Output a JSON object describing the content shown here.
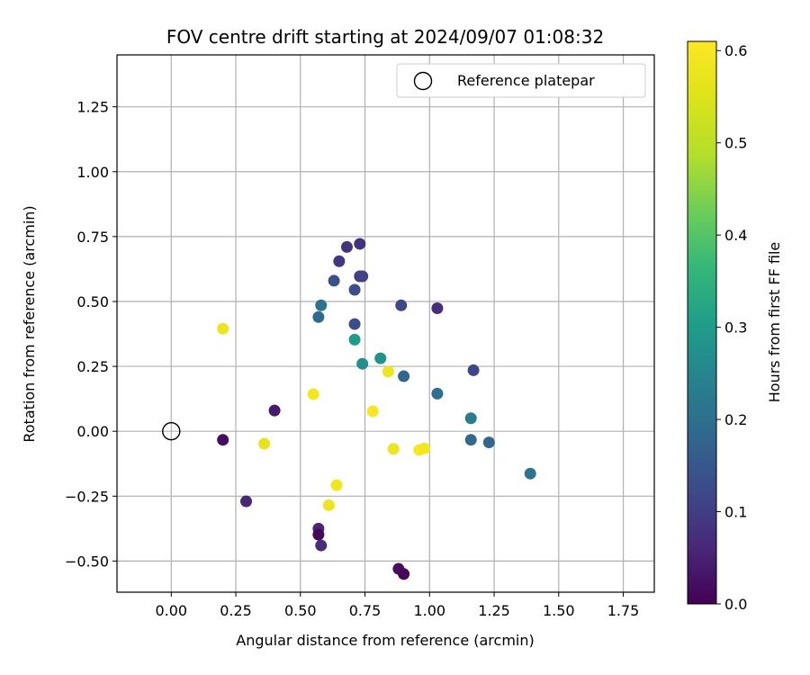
{
  "chart_data": {
    "type": "scatter",
    "title": "FOV centre drift starting at 2024/09/07 01:08:32",
    "xlabel": "Angular distance from reference (arcmin)",
    "ylabel": "Rotation from reference (arcmin)",
    "xlim": [
      -0.21,
      1.87
    ],
    "ylim": [
      -0.62,
      1.45
    ],
    "xticks": [
      {
        "value": 0.0,
        "label": "0.00"
      },
      {
        "value": 0.25,
        "label": "0.25"
      },
      {
        "value": 0.5,
        "label": "0.50"
      },
      {
        "value": 0.75,
        "label": "0.75"
      },
      {
        "value": 1.0,
        "label": "1.00"
      },
      {
        "value": 1.25,
        "label": "1.25"
      },
      {
        "value": 1.5,
        "label": "1.50"
      },
      {
        "value": 1.75,
        "label": "1.75"
      }
    ],
    "yticks": [
      {
        "value": -0.5,
        "label": "−0.50"
      },
      {
        "value": -0.25,
        "label": "−0.25"
      },
      {
        "value": 0.0,
        "label": "0.00"
      },
      {
        "value": 0.25,
        "label": "0.25"
      },
      {
        "value": 0.5,
        "label": "0.50"
      },
      {
        "value": 0.75,
        "label": "0.75"
      },
      {
        "value": 1.0,
        "label": "1.00"
      },
      {
        "value": 1.25,
        "label": "1.25"
      }
    ],
    "grid": true,
    "legend": {
      "position": "top-right",
      "entries": [
        "Reference platepar"
      ]
    },
    "reference_point": {
      "x": 0.0,
      "y": 0.0,
      "label": "Reference platepar"
    },
    "colorbar": {
      "label": "Hours from first FF file",
      "colormap": "viridis",
      "range": [
        0.0,
        0.61
      ],
      "ticks": [
        {
          "value": 0.0,
          "label": "0.0"
        },
        {
          "value": 0.1,
          "label": "0.1"
        },
        {
          "value": 0.2,
          "label": "0.2"
        },
        {
          "value": 0.3,
          "label": "0.3"
        },
        {
          "value": 0.4,
          "label": "0.4"
        },
        {
          "value": 0.5,
          "label": "0.5"
        },
        {
          "value": 0.6,
          "label": "0.6"
        }
      ]
    },
    "points": [
      {
        "x": 0.2,
        "y": 0.395,
        "c": 0.58
      },
      {
        "x": 0.2,
        "y": -0.033,
        "c": 0.02
      },
      {
        "x": 0.29,
        "y": -0.27,
        "c": 0.06
      },
      {
        "x": 0.36,
        "y": -0.048,
        "c": 0.57
      },
      {
        "x": 0.4,
        "y": 0.08,
        "c": 0.04
      },
      {
        "x": 0.55,
        "y": 0.143,
        "c": 0.59
      },
      {
        "x": 0.57,
        "y": -0.375,
        "c": 0.06
      },
      {
        "x": 0.57,
        "y": -0.398,
        "c": 0.01
      },
      {
        "x": 0.57,
        "y": 0.44,
        "c": 0.19
      },
      {
        "x": 0.58,
        "y": 0.485,
        "c": 0.21
      },
      {
        "x": 0.58,
        "y": -0.44,
        "c": 0.07
      },
      {
        "x": 0.61,
        "y": -0.285,
        "c": 0.58
      },
      {
        "x": 0.63,
        "y": 0.58,
        "c": 0.14
      },
      {
        "x": 0.64,
        "y": -0.208,
        "c": 0.59
      },
      {
        "x": 0.65,
        "y": 0.655,
        "c": 0.09
      },
      {
        "x": 0.68,
        "y": 0.71,
        "c": 0.08
      },
      {
        "x": 0.71,
        "y": 0.545,
        "c": 0.13
      },
      {
        "x": 0.71,
        "y": 0.413,
        "c": 0.13
      },
      {
        "x": 0.71,
        "y": 0.353,
        "c": 0.3
      },
      {
        "x": 0.73,
        "y": 0.722,
        "c": 0.08
      },
      {
        "x": 0.73,
        "y": 0.597,
        "c": 0.1
      },
      {
        "x": 0.74,
        "y": 0.597,
        "c": 0.11
      },
      {
        "x": 0.74,
        "y": 0.26,
        "c": 0.27
      },
      {
        "x": 0.78,
        "y": 0.077,
        "c": 0.6
      },
      {
        "x": 0.81,
        "y": 0.281,
        "c": 0.28
      },
      {
        "x": 0.84,
        "y": 0.23,
        "c": 0.58
      },
      {
        "x": 0.86,
        "y": -0.068,
        "c": 0.58
      },
      {
        "x": 0.88,
        "y": -0.53,
        "c": 0.02
      },
      {
        "x": 0.89,
        "y": 0.485,
        "c": 0.12
      },
      {
        "x": 0.9,
        "y": 0.212,
        "c": 0.18
      },
      {
        "x": 0.9,
        "y": -0.55,
        "c": 0.01
      },
      {
        "x": 0.96,
        "y": -0.072,
        "c": 0.6
      },
      {
        "x": 0.98,
        "y": -0.066,
        "c": 0.59
      },
      {
        "x": 1.03,
        "y": 0.145,
        "c": 0.2
      },
      {
        "x": 1.03,
        "y": 0.474,
        "c": 0.07
      },
      {
        "x": 1.16,
        "y": 0.05,
        "c": 0.23
      },
      {
        "x": 1.16,
        "y": -0.033,
        "c": 0.19
      },
      {
        "x": 1.17,
        "y": 0.235,
        "c": 0.12
      },
      {
        "x": 1.23,
        "y": -0.043,
        "c": 0.18
      },
      {
        "x": 1.39,
        "y": -0.163,
        "c": 0.21
      }
    ]
  }
}
